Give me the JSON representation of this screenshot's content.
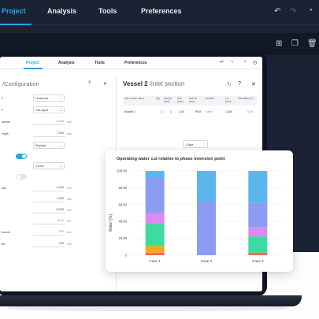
{
  "bg": {
    "tabs": [
      "Project",
      "Analysis",
      "Tools",
      "Preferences"
    ],
    "icons": [
      "undo-icon",
      "redo-icon",
      "copy-icon",
      "duplicate-icon",
      "delete-icon"
    ]
  },
  "app": {
    "tabs": [
      "Project",
      "Analysis",
      "Tools",
      "Preferences"
    ],
    "active_tab": "Project"
  },
  "left_panel": {
    "title": "/Configuration",
    "rows": [
      {
        "label": "n",
        "kind": "select",
        "value": "Horizontal"
      },
      {
        "label": "e",
        "kind": "select",
        "value": "Gas-liquid"
      },
      {
        "label": "ameter",
        "kind": "number",
        "value": "2,000",
        "unit": "mm",
        "blue": true
      },
      {
        "label": "ength",
        "kind": "number",
        "value": "7,000",
        "unit": "mm",
        "blue": false
      },
      {
        "label": "",
        "kind": "select",
        "value": "Elliptical"
      },
      {
        "label": "",
        "kind": "toggle",
        "value": "on"
      },
      {
        "label": "",
        "kind": "select",
        "value": "Center"
      },
      {
        "label": "",
        "kind": "toggle",
        "value": "off"
      },
      {
        "label": "ater",
        "kind": "number",
        "value": "1,000",
        "unit": "mm",
        "blue": false
      },
      {
        "label": "",
        "kind": "number",
        "value": "1,500",
        "unit": "mm",
        "blue": false
      },
      {
        "label": "",
        "kind": "number",
        "value": "6,000",
        "unit": "mm",
        "blue": false
      },
      {
        "label": "",
        "kind": "number",
        "value": "8.41",
        "unit": "m3",
        "blue": true
      },
      {
        "label": "banner",
        "kind": "number",
        "value": "500",
        "unit": "mm",
        "blue": true
      },
      {
        "label": "lite",
        "kind": "number",
        "value": "750",
        "unit": "mm",
        "blue": false
      }
    ]
  },
  "vessel_panel": {
    "title": "Vessel 2",
    "subtitle": "/inlet section",
    "table_headers": [
      "Inlet nozzle name",
      "Qty",
      "MIn(D) (mm)",
      "Dist (mm)",
      "Inlet ID (mm)",
      "Location",
      "L/L (mm)",
      "Orientation (°)"
    ],
    "row": [
      "Nozzle 1",
      "1",
      "1",
      "2.00",
      "99.8",
      "shell",
      "1,000",
      "0.00"
    ],
    "case_label": "Case",
    "case_value": "Case"
  },
  "chart_data": {
    "type": "bar",
    "stacked": true,
    "title": "Operating water cut relative to phase inversion point",
    "ylabel": "Water (%)",
    "xlabel": "",
    "ylim": [
      0,
      100
    ],
    "yticks": [
      "0",
      "20.00",
      "40.00",
      "60.00",
      "80.00",
      "100.00"
    ],
    "categories": [
      "Case 1",
      "Case 2",
      "Case 3"
    ],
    "series": [
      {
        "color": "#ef6b5a",
        "values": [
          3,
          0,
          3
        ]
      },
      {
        "color": "#f5a623",
        "values": [
          8,
          0,
          0
        ]
      },
      {
        "color": "#3ddba0",
        "values": [
          26,
          0,
          19
        ]
      },
      {
        "color": "#d98cf0",
        "values": [
          13,
          0,
          11
        ]
      },
      {
        "color": "#8c9cf2",
        "values": [
          42,
          64,
          29
        ]
      },
      {
        "color": "#5cb6ec",
        "values": [
          8,
          36,
          38
        ]
      }
    ]
  }
}
